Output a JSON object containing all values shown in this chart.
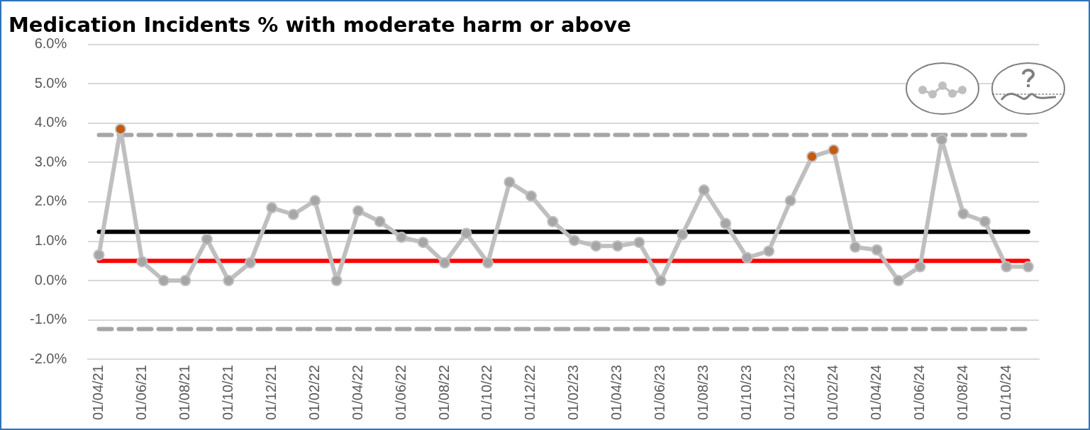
{
  "chart_data": {
    "type": "line",
    "title": "Medication Incidents % with moderate harm or above",
    "categories": [
      "01/04/21",
      null,
      "01/06/21",
      null,
      "01/08/21",
      null,
      "01/10/21",
      null,
      "01/12/21",
      null,
      "01/02/22",
      null,
      "01/04/22",
      null,
      "01/06/22",
      null,
      "01/08/22",
      null,
      "01/10/22",
      null,
      "01/12/22",
      null,
      "01/02/23",
      null,
      "01/04/23",
      null,
      "01/06/23",
      null,
      "01/08/23",
      null,
      "01/10/23",
      null,
      "01/12/23",
      null,
      "01/02/24",
      null,
      "01/04/24",
      null,
      "01/06/24",
      null,
      "01/08/24",
      null,
      "01/10/24",
      null
    ],
    "series": [
      {
        "color": "#bfbfbf",
        "values": [
          0.65,
          3.85,
          0.48,
          0,
          0,
          1.05,
          0,
          0.45,
          1.85,
          1.68,
          2.03,
          0,
          1.77,
          1.5,
          1.1,
          0.97,
          0.45,
          1.2,
          0.45,
          2.5,
          2.15,
          1.5,
          1.02,
          0.88,
          0.88,
          0.97,
          0,
          1.17,
          2.3,
          1.45,
          0.58,
          0.75,
          2.03,
          3.15,
          3.32,
          0.85,
          0.78,
          0,
          0.35,
          3.58,
          1.7,
          1.5,
          0.35,
          0.35
        ],
        "colors": [
          "#a6a6a6",
          "#c55a11",
          "#a6a6a6",
          "#a6a6a6",
          "#a6a6a6",
          "#a6a6a6",
          "#a6a6a6",
          "#a6a6a6",
          "#a6a6a6",
          "#a6a6a6",
          "#a6a6a6",
          "#a6a6a6",
          "#a6a6a6",
          "#a6a6a6",
          "#a6a6a6",
          "#a6a6a6",
          "#a6a6a6",
          "#a6a6a6",
          "#a6a6a6",
          "#a6a6a6",
          "#a6a6a6",
          "#a6a6a6",
          "#a6a6a6",
          "#a6a6a6",
          "#a6a6a6",
          "#a6a6a6",
          "#a6a6a6",
          "#a6a6a6",
          "#a6a6a6",
          "#a6a6a6",
          "#a6a6a6",
          "#a6a6a6",
          "#a6a6a6",
          "#c55a11",
          "#c55a11",
          "#a6a6a6",
          "#a6a6a6",
          "#a6a6a6",
          "#a6a6a6",
          "#a6a6a6",
          "#a6a6a6",
          "#a6a6a6",
          "#a6a6a6",
          "#a6a6a6"
        ]
      }
    ],
    "ylim": [
      -2,
      6
    ],
    "yticks": [
      {
        "value": -2,
        "label": "-2.0%"
      },
      {
        "value": -1,
        "label": "-1.0%"
      },
      {
        "value": 0,
        "label": "0.0%"
      },
      {
        "value": 1,
        "label": "1.0%"
      },
      {
        "value": 2,
        "label": "2.0%"
      },
      {
        "value": 3,
        "label": "3.0%"
      },
      {
        "value": 4,
        "label": "4.0%"
      },
      {
        "value": 5,
        "label": "5.0%"
      },
      {
        "value": 6,
        "label": "6.0%"
      }
    ],
    "ref_lines": [
      {
        "axis": "y",
        "value": 3.7,
        "color": "#a6a6a6",
        "line_style": "dashed"
      },
      {
        "axis": "y",
        "value": 1.24,
        "color": "#000000",
        "line_style": "solid"
      },
      {
        "axis": "y",
        "value": 0.5,
        "color": "#ff0000",
        "line_style": "solid"
      },
      {
        "axis": "y",
        "value": -1.23,
        "color": "#a6a6a6",
        "line_style": "dashed"
      }
    ],
    "grid": "y",
    "legend": false,
    "marker": "circle",
    "line_style": "solid"
  }
}
